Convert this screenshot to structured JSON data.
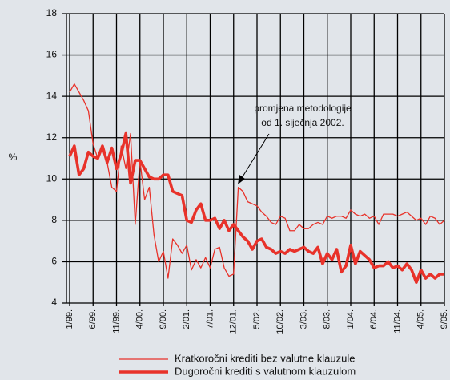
{
  "chart_data": {
    "type": "line",
    "ylabel": "%",
    "categories": [
      "1/99.",
      null,
      null,
      null,
      null,
      "6/99.",
      null,
      null,
      null,
      null,
      "11/99.",
      null,
      null,
      null,
      null,
      "4/00.",
      null,
      null,
      null,
      null,
      "9/00.",
      null,
      null,
      null,
      null,
      "2/01.",
      null,
      null,
      null,
      null,
      "7/01.",
      null,
      null,
      null,
      null,
      "12/01.",
      null,
      null,
      null,
      null,
      "5/02.",
      null,
      null,
      null,
      null,
      "10/02.",
      null,
      null,
      null,
      null,
      "3/03.",
      null,
      null,
      null,
      null,
      "8/03.",
      null,
      null,
      null,
      null,
      "1/04.",
      null,
      null,
      null,
      null,
      "6/04.",
      null,
      null,
      null,
      null,
      "11/04.",
      null,
      null,
      null,
      null,
      "4/05.",
      null,
      null,
      null,
      null,
      "9/05."
    ],
    "series": [
      {
        "name": "Kratkoročni krediti bez valutne klauzule",
        "color": "#e8322a",
        "width": 1.3,
        "values": [
          14.2,
          14.6,
          14.2,
          13.8,
          13.3,
          11.7,
          11.0,
          11.6,
          10.8,
          9.6,
          9.4,
          11.6,
          10.5,
          12.2,
          7.8,
          10.9,
          9.0,
          9.6,
          7.3,
          6.0,
          6.5,
          5.2,
          7.1,
          6.8,
          6.4,
          6.8,
          5.6,
          6.1,
          5.7,
          6.2,
          5.7,
          6.6,
          6.7,
          5.7,
          5.3,
          5.4,
          9.6,
          9.4,
          8.9,
          8.8,
          8.7,
          8.4,
          8.2,
          7.9,
          7.8,
          8.2,
          8.1,
          7.5,
          7.5,
          7.8,
          7.6,
          7.6,
          7.8,
          7.9,
          7.8,
          8.2,
          8.1,
          8.2,
          8.2,
          8.1,
          8.5,
          8.3,
          8.2,
          8.3,
          8.1,
          8.2,
          7.8,
          8.3,
          8.3,
          8.3,
          8.2,
          8.3,
          8.4,
          8.2,
          8.0,
          8.1,
          7.8,
          8.2,
          8.1,
          7.8,
          8.0
        ]
      },
      {
        "name": "Dugoročni krediti s valutnom klauzulom",
        "color": "#e8322a",
        "width": 3.6,
        "values": [
          11.1,
          11.6,
          10.2,
          10.5,
          11.3,
          11.1,
          11.0,
          11.6,
          10.8,
          11.5,
          10.5,
          11.2,
          12.2,
          9.8,
          10.9,
          10.9,
          10.5,
          10.1,
          10.0,
          10.0,
          10.2,
          10.2,
          9.4,
          9.3,
          9.2,
          8.0,
          7.9,
          8.5,
          8.8,
          8.0,
          8.0,
          8.1,
          7.6,
          8.0,
          7.5,
          7.8,
          7.5,
          7.2,
          7.0,
          6.6,
          7.0,
          7.1,
          6.7,
          6.6,
          6.4,
          6.5,
          6.4,
          6.6,
          6.5,
          6.6,
          6.7,
          6.5,
          6.4,
          6.7,
          5.9,
          6.4,
          6.1,
          6.6,
          5.5,
          5.8,
          6.8,
          5.9,
          6.5,
          6.3,
          6.1,
          5.7,
          5.8,
          5.8,
          6.0,
          5.7,
          5.8,
          5.6,
          5.9,
          5.6,
          5.0,
          5.6,
          5.2,
          5.4,
          5.2,
          5.4,
          5.4
        ]
      }
    ],
    "ylim": [
      4,
      18
    ],
    "yticks": [
      4,
      6,
      8,
      10,
      12,
      14,
      16,
      18
    ],
    "grid": true,
    "annotation": [
      "promjena metodologije",
      "od 1. siječnja 2002."
    ]
  }
}
